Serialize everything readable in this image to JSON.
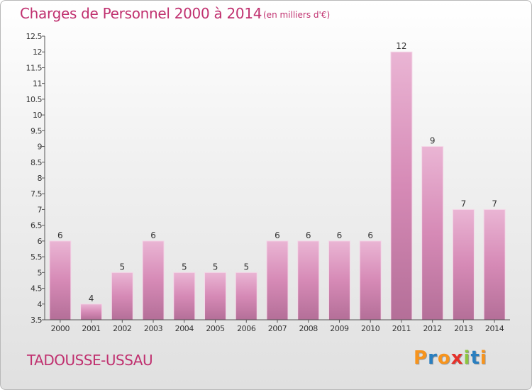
{
  "header": {
    "title": "Charges de Personnel 2000 à 2014",
    "subtitle": "(en milliers d'€)"
  },
  "footer": {
    "commune": "TADOUSSE-USSAU",
    "logo_text": "Proxiti",
    "logo_colors": [
      "#f7941d",
      "#2a7fc0",
      "#f7941d",
      "#e5312b",
      "#8dc63f",
      "#2a7fc0",
      "#f7941d"
    ]
  },
  "colors": {
    "bar_light": "#eab5d4",
    "bar_mid": "#d68ab6",
    "bar_dark": "#b46f98",
    "accent": "#c0306f",
    "axis": "#555555"
  },
  "chart_data": {
    "type": "bar",
    "categories": [
      "2000",
      "2001",
      "2002",
      "2003",
      "2004",
      "2005",
      "2006",
      "2007",
      "2008",
      "2009",
      "2010",
      "2011",
      "2012",
      "2013",
      "2014"
    ],
    "values": [
      6,
      4,
      5,
      6,
      5,
      5,
      5,
      6,
      6,
      6,
      6,
      12,
      9,
      7,
      7
    ],
    "data_labels": [
      "6",
      "4",
      "5",
      "6",
      "5",
      "5",
      "5",
      "6",
      "6",
      "6",
      "6",
      "12",
      "9",
      "7",
      "7"
    ],
    "yticks": [
      "3.5",
      "4",
      "4.5",
      "5",
      "5.5",
      "6",
      "6.5",
      "7",
      "7.5",
      "8",
      "8.5",
      "9",
      "9.5",
      "10",
      "10.5",
      "11",
      "11.5",
      "12",
      "12.5"
    ],
    "ylim": [
      3.5,
      12.5
    ],
    "grid": false,
    "title": "Charges de Personnel 2000 à 2014",
    "xlabel": "",
    "ylabel": ""
  }
}
